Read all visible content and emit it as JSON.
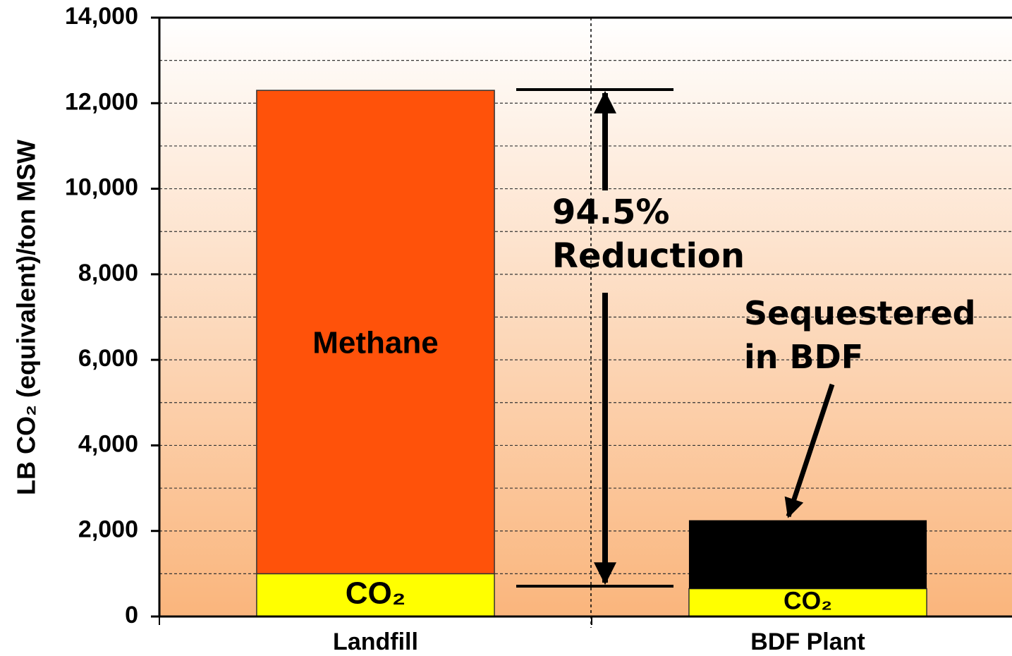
{
  "chart_data": {
    "type": "stacked_bar",
    "y_label": "LB CO₂ (equivalent)/ton MSW",
    "categories": [
      "Landfill",
      "BDF Plant"
    ],
    "series": [
      {
        "name": "CO₂",
        "color": "#ffff00",
        "values": [
          1000,
          650
        ]
      },
      {
        "name": "Methane",
        "color": "#ff520a",
        "values": [
          11300,
          null
        ]
      },
      {
        "name": "Sequestered in BDF",
        "color": "#000000",
        "values": [
          null,
          1600
        ]
      }
    ],
    "annotations": [
      "94.5% Reduction"
    ],
    "ylim": [
      0,
      14000
    ],
    "yticks": [
      0,
      {
        "value": 2000,
        "label": "2,000"
      },
      {
        "value": 4000,
        "label": "4,000"
      },
      {
        "value": 6000,
        "label": "6,000"
      },
      {
        "value": 8000,
        "label": "8,000"
      },
      {
        "value": 10000,
        "label": "10,000"
      },
      {
        "value": 12000,
        "label": "12,000"
      },
      {
        "value": 14000,
        "label": "14,000"
      }
    ],
    "minor_grid": [
      1000,
      3000,
      5000,
      7000,
      9000,
      11000,
      13000
    ],
    "grid": true
  }
}
